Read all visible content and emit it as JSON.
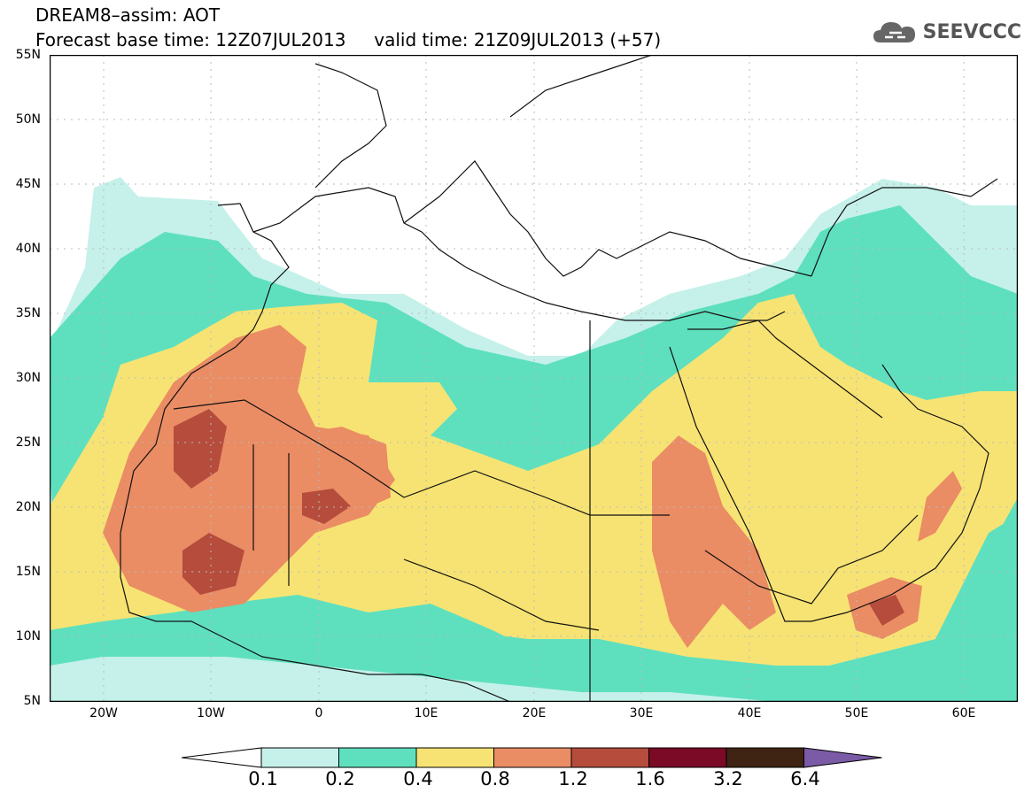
{
  "title": {
    "line1": "DREAM8–assim: AOT",
    "line2_base": "Forecast base time: 12Z07JUL2013",
    "line2_valid": "valid time: 21Z09JUL2013 (+57)"
  },
  "logo": {
    "text": "SEEVCCC",
    "icon": "cloud-icon"
  },
  "map": {
    "lat_labels": [
      "55N",
      "50N",
      "45N",
      "40N",
      "35N",
      "30N",
      "25N",
      "20N",
      "15N",
      "10N",
      "5N"
    ],
    "lon_labels": [
      "20W",
      "10W",
      "0",
      "10E",
      "20E",
      "30E",
      "40E",
      "50E",
      "60E"
    ],
    "lat_range": [
      5,
      55
    ],
    "lon_range": [
      -25,
      65
    ],
    "grid": true
  },
  "colorbar": {
    "labels": [
      "0.1",
      "0.2",
      "0.4",
      "0.8",
      "1.2",
      "1.6",
      "3.2",
      "6.4"
    ],
    "colors": [
      "#ffffff",
      "#c5f1ea",
      "#5ee0bf",
      "#f7e373",
      "#ea8c64",
      "#b54c3c",
      "#7a0a26",
      "#3f2413",
      "#7b5aa6"
    ]
  }
}
